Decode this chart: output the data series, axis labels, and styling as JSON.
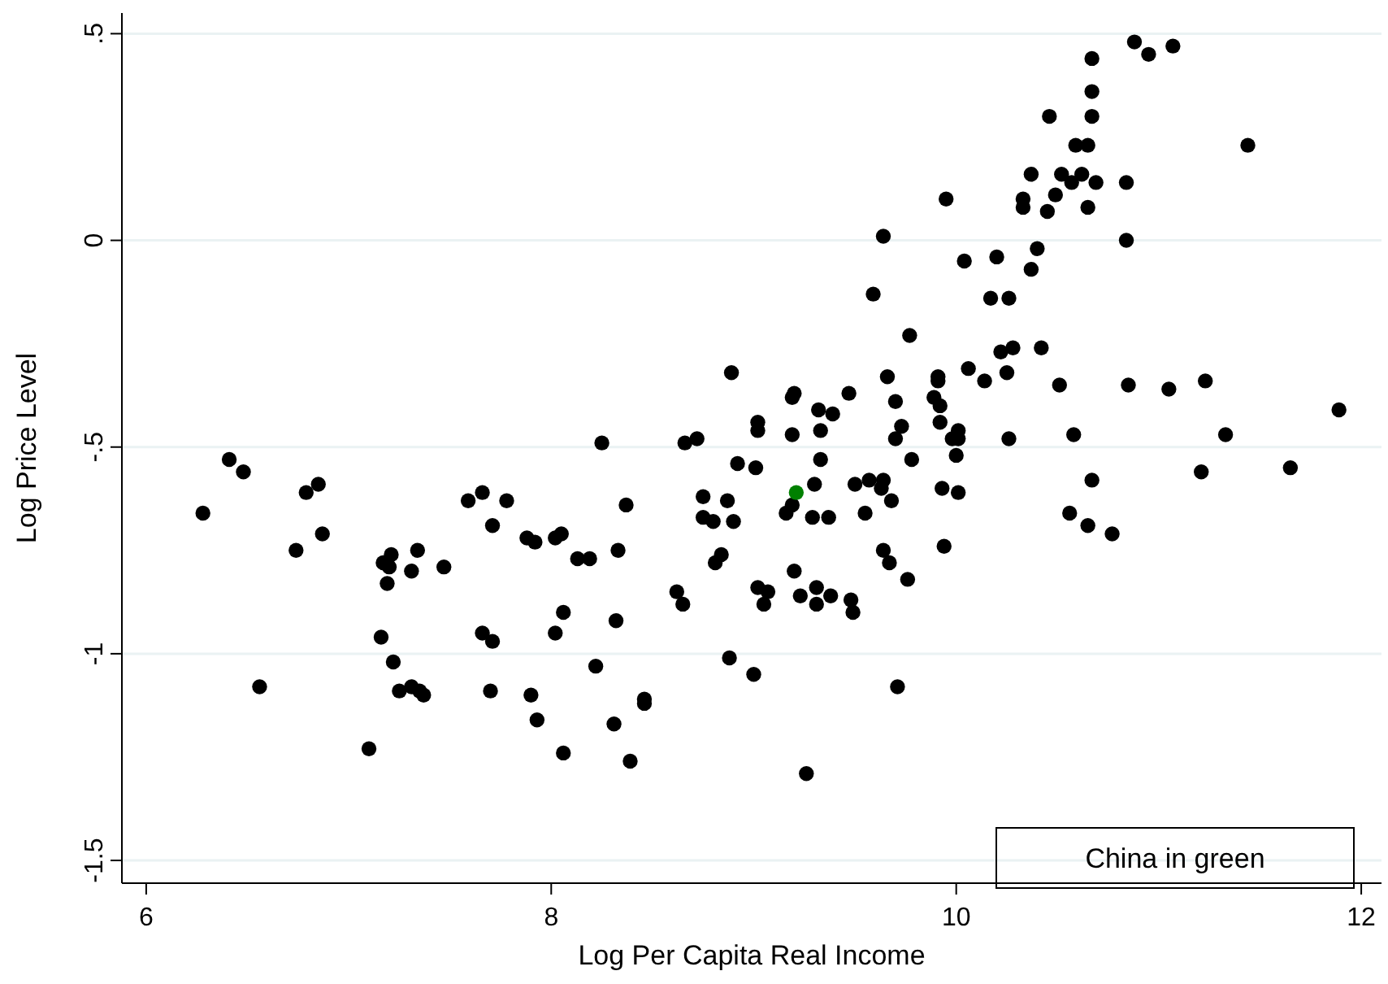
{
  "chart_data": {
    "type": "scatter",
    "xlabel": "Log Per Capita Real Income",
    "ylabel": "Log Price Level",
    "xlim": [
      5.88,
      12.1
    ],
    "ylim": [
      -1.555,
      0.55
    ],
    "xticks": [
      6,
      8,
      10,
      12
    ],
    "yticks": [
      {
        "value": -1.5,
        "label": "-1.5"
      },
      -1,
      {
        "value": -0.5,
        "label": "-.5"
      },
      0,
      {
        "value": 0.5,
        "label": ".5"
      }
    ],
    "grid": "y",
    "marker": "circle",
    "annotations": [
      "China in green"
    ],
    "series": [
      {
        "color": "#000000",
        "x": [
          6.28,
          6.41,
          6.48,
          6.79,
          6.85,
          6.87,
          6.74,
          6.56,
          7.59,
          7.66,
          7.78,
          7.71,
          7.88,
          7.92,
          8.02,
          8.05,
          7.21,
          7.17,
          7.2,
          7.19,
          7.31,
          7.34,
          7.47,
          7.16,
          7.22,
          7.25,
          7.31,
          7.35,
          7.37,
          7.66,
          7.71,
          7.7,
          7.9,
          7.93,
          8.02,
          8.06,
          7.1,
          8.06,
          8.25,
          8.66,
          8.72,
          9.02,
          9.02,
          9.19,
          9.2,
          8.89,
          9.32,
          9.39,
          9.47,
          9.19,
          9.33,
          9.66,
          9.7,
          9.91,
          9.91,
          9.89,
          9.92,
          9.92,
          9.73,
          9.7,
          9.78,
          9.33,
          8.92,
          9.01,
          9.3,
          9.19,
          9.16,
          9.29,
          9.37,
          9.5,
          9.57,
          9.64,
          9.63,
          9.68,
          9.55,
          9.93,
          10.0,
          10.01,
          9.94,
          9.64,
          9.67,
          9.76,
          8.75,
          8.87,
          8.75,
          8.8,
          8.9,
          8.37,
          8.13,
          8.19,
          8.33,
          8.84,
          8.81,
          8.62,
          8.65,
          9.02,
          9.07,
          9.05,
          9.2,
          9.23,
          9.31,
          9.31,
          9.38,
          9.48,
          9.49,
          8.32,
          8.22,
          8.88,
          9.0,
          9.71,
          8.46,
          8.46,
          8.31,
          8.39,
          9.26,
          10.88,
          10.95,
          11.07,
          10.67,
          10.67,
          10.67,
          10.46,
          10.59,
          10.65,
          11.44,
          10.37,
          10.52,
          10.57,
          10.62,
          10.69,
          10.84,
          10.33,
          10.33,
          10.49,
          10.45,
          10.65,
          9.95,
          9.64,
          10.84,
          10.4,
          10.2,
          10.04,
          10.37,
          9.59,
          10.17,
          10.26,
          9.77,
          10.22,
          10.28,
          10.42,
          10.06,
          10.14,
          10.25,
          10.51,
          10.85,
          11.05,
          11.23,
          11.89,
          10.01,
          9.98,
          10.01,
          10.26,
          10.58,
          11.33,
          10.67,
          11.21,
          11.65,
          10.56,
          10.65,
          10.77
        ],
        "values": [
          -0.66,
          -0.53,
          -0.56,
          -0.61,
          -0.59,
          -0.71,
          -0.75,
          -1.08,
          -0.63,
          -0.61,
          -0.63,
          -0.69,
          -0.72,
          -0.73,
          -0.72,
          -0.71,
          -0.76,
          -0.78,
          -0.79,
          -0.83,
          -0.8,
          -0.75,
          -0.79,
          -0.96,
          -1.02,
          -1.09,
          -1.08,
          -1.09,
          -1.1,
          -0.95,
          -0.97,
          -1.09,
          -1.1,
          -1.16,
          -0.95,
          -0.9,
          -1.23,
          -1.24,
          -0.49,
          -0.49,
          -0.48,
          -0.44,
          -0.46,
          -0.38,
          -0.37,
          -0.32,
          -0.41,
          -0.42,
          -0.37,
          -0.47,
          -0.46,
          -0.33,
          -0.39,
          -0.34,
          -0.33,
          -0.38,
          -0.4,
          -0.44,
          -0.45,
          -0.48,
          -0.53,
          -0.53,
          -0.54,
          -0.55,
          -0.59,
          -0.64,
          -0.66,
          -0.67,
          -0.67,
          -0.59,
          -0.58,
          -0.58,
          -0.6,
          -0.63,
          -0.66,
          -0.6,
          -0.52,
          -0.61,
          -0.74,
          -0.75,
          -0.78,
          -0.82,
          -0.62,
          -0.63,
          -0.67,
          -0.68,
          -0.68,
          -0.64,
          -0.77,
          -0.77,
          -0.75,
          -0.76,
          -0.78,
          -0.85,
          -0.88,
          -0.84,
          -0.85,
          -0.88,
          -0.8,
          -0.86,
          -0.84,
          -0.88,
          -0.86,
          -0.87,
          -0.9,
          -0.92,
          -1.03,
          -1.01,
          -1.05,
          -1.08,
          -1.11,
          -1.12,
          -1.17,
          -1.26,
          -1.29,
          0.48,
          0.45,
          0.47,
          0.44,
          0.36,
          0.3,
          0.3,
          0.23,
          0.23,
          0.23,
          0.16,
          0.16,
          0.14,
          0.16,
          0.14,
          0.14,
          0.1,
          0.08,
          0.11,
          0.07,
          0.08,
          0.1,
          0.01,
          0.0,
          -0.02,
          -0.04,
          -0.05,
          -0.07,
          -0.13,
          -0.14,
          -0.14,
          -0.23,
          -0.27,
          -0.26,
          -0.26,
          -0.31,
          -0.34,
          -0.32,
          -0.35,
          -0.35,
          -0.36,
          -0.34,
          -0.41,
          -0.46,
          -0.48,
          -0.48,
          -0.48,
          -0.47,
          -0.47,
          -0.58,
          -0.56,
          -0.55,
          -0.66,
          -0.69,
          -0.71
        ]
      },
      {
        "color": "#008000",
        "x": [
          9.21
        ],
        "values": [
          -0.61
        ]
      }
    ]
  }
}
